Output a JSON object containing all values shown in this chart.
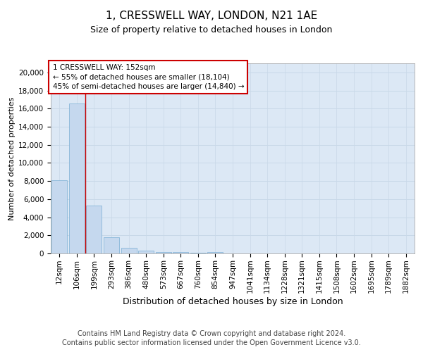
{
  "title_line1": "1, CRESSWELL WAY, LONDON, N21 1AE",
  "title_line2": "Size of property relative to detached houses in London",
  "xlabel": "Distribution of detached houses by size in London",
  "ylabel": "Number of detached properties",
  "categories": [
    "12sqm",
    "106sqm",
    "199sqm",
    "293sqm",
    "386sqm",
    "480sqm",
    "573sqm",
    "667sqm",
    "760sqm",
    "854sqm",
    "947sqm",
    "1041sqm",
    "1134sqm",
    "1228sqm",
    "1321sqm",
    "1415sqm",
    "1508sqm",
    "1602sqm",
    "1695sqm",
    "1789sqm",
    "1882sqm"
  ],
  "values": [
    8100,
    16600,
    5300,
    1800,
    650,
    330,
    180,
    130,
    100,
    130,
    0,
    0,
    0,
    0,
    0,
    0,
    0,
    0,
    0,
    0,
    0
  ],
  "bar_color": "#c5d8ee",
  "bar_edge_color": "#7bafd4",
  "grid_color": "#c8d8e8",
  "background_color": "#dce8f5",
  "vline_x": 1.5,
  "vline_color": "#cc0000",
  "annotation_text": "1 CRESSWELL WAY: 152sqm\n← 55% of detached houses are smaller (18,104)\n45% of semi-detached houses are larger (14,840) →",
  "annotation_box_color": "#ffffff",
  "annotation_box_edge": "#cc0000",
  "ylim": [
    0,
    21000
  ],
  "yticks": [
    0,
    2000,
    4000,
    6000,
    8000,
    10000,
    12000,
    14000,
    16000,
    18000,
    20000
  ],
  "footer_line1": "Contains HM Land Registry data © Crown copyright and database right 2024.",
  "footer_line2": "Contains public sector information licensed under the Open Government Licence v3.0.",
  "title_fontsize": 11,
  "subtitle_fontsize": 9,
  "axis_label_fontsize": 9,
  "ylabel_fontsize": 8,
  "tick_fontsize": 7.5,
  "annotation_fontsize": 7.5,
  "footer_fontsize": 7
}
